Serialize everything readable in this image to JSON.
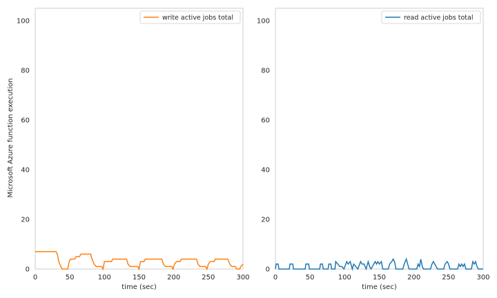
{
  "ylabel_shared": "Microsoft Azure function execution",
  "chart_data": [
    {
      "type": "line",
      "xlabel": "time (sec)",
      "ylabel": "Microsoft Azure function execution",
      "xlim": [
        0,
        300
      ],
      "ylim": [
        0,
        105
      ],
      "xticks": [
        0,
        50,
        100,
        150,
        200,
        250,
        300
      ],
      "yticks": [
        0,
        20,
        40,
        60,
        80,
        100
      ],
      "grid": false,
      "legend_position": "top-right",
      "series": [
        {
          "name": "write active jobs total",
          "color": "#ff7f0e",
          "points": [
            [
              0,
              7
            ],
            [
              5,
              7
            ],
            [
              10,
              7
            ],
            [
              15,
              7
            ],
            [
              20,
              7
            ],
            [
              25,
              7
            ],
            [
              30,
              7
            ],
            [
              32,
              6
            ],
            [
              34,
              3
            ],
            [
              37,
              1
            ],
            [
              39,
              0
            ],
            [
              47,
              0
            ],
            [
              49,
              3
            ],
            [
              51,
              4
            ],
            [
              57,
              4
            ],
            [
              59,
              5
            ],
            [
              64,
              5
            ],
            [
              66,
              6
            ],
            [
              80,
              6
            ],
            [
              82,
              4
            ],
            [
              85,
              2
            ],
            [
              88,
              1
            ],
            [
              96,
              1
            ],
            [
              98,
              0
            ],
            [
              100,
              3
            ],
            [
              103,
              3
            ],
            [
              110,
              3
            ],
            [
              112,
              4
            ],
            [
              132,
              4
            ],
            [
              134,
              2
            ],
            [
              137,
              1
            ],
            [
              148,
              1
            ],
            [
              150,
              0
            ],
            [
              152,
              3
            ],
            [
              157,
              3
            ],
            [
              159,
              4
            ],
            [
              183,
              4
            ],
            [
              185,
              2
            ],
            [
              188,
              1
            ],
            [
              197,
              1
            ],
            [
              199,
              0
            ],
            [
              201,
              2
            ],
            [
              204,
              3
            ],
            [
              209,
              3
            ],
            [
              211,
              4
            ],
            [
              233,
              4
            ],
            [
              235,
              2
            ],
            [
              238,
              1
            ],
            [
              246,
              1
            ],
            [
              248,
              0
            ],
            [
              250,
              2
            ],
            [
              253,
              3
            ],
            [
              258,
              3
            ],
            [
              260,
              4
            ],
            [
              278,
              4
            ],
            [
              281,
              2
            ],
            [
              284,
              1
            ],
            [
              289,
              1
            ],
            [
              291,
              0
            ],
            [
              295,
              0
            ],
            [
              297,
              1
            ],
            [
              300,
              2
            ]
          ]
        }
      ]
    },
    {
      "type": "line",
      "xlabel": "time (sec)",
      "ylabel": "",
      "xlim": [
        0,
        300
      ],
      "ylim": [
        0,
        105
      ],
      "xticks": [
        0,
        50,
        100,
        150,
        200,
        250,
        300
      ],
      "yticks": [
        0,
        20,
        40,
        60,
        80,
        100
      ],
      "grid": false,
      "legend_position": "top-right",
      "series": [
        {
          "name": "read active jobs total",
          "color": "#1f77b4",
          "points": [
            [
              0,
              0
            ],
            [
              1,
              2
            ],
            [
              4,
              2
            ],
            [
              5,
              0
            ],
            [
              20,
              0
            ],
            [
              21,
              2
            ],
            [
              25,
              2
            ],
            [
              26,
              0
            ],
            [
              43,
              0
            ],
            [
              44,
              2
            ],
            [
              48,
              2
            ],
            [
              49,
              0
            ],
            [
              64,
              0
            ],
            [
              65,
              2
            ],
            [
              68,
              2
            ],
            [
              69,
              0
            ],
            [
              76,
              0
            ],
            [
              77,
              2
            ],
            [
              80,
              2
            ],
            [
              81,
              0
            ],
            [
              86,
              0
            ],
            [
              87,
              3
            ],
            [
              90,
              2
            ],
            [
              93,
              1
            ],
            [
              96,
              1
            ],
            [
              99,
              0
            ],
            [
              103,
              3
            ],
            [
              105,
              2
            ],
            [
              108,
              3
            ],
            [
              111,
              0
            ],
            [
              113,
              2
            ],
            [
              116,
              1
            ],
            [
              119,
              0
            ],
            [
              123,
              3
            ],
            [
              125,
              2
            ],
            [
              128,
              2
            ],
            [
              131,
              0
            ],
            [
              134,
              3
            ],
            [
              136,
              1
            ],
            [
              138,
              0
            ],
            [
              142,
              2
            ],
            [
              144,
              3
            ],
            [
              146,
              2
            ],
            [
              148,
              3
            ],
            [
              150,
              2
            ],
            [
              153,
              3
            ],
            [
              155,
              0
            ],
            [
              163,
              0
            ],
            [
              165,
              2
            ],
            [
              168,
              3
            ],
            [
              170,
              4
            ],
            [
              172,
              3
            ],
            [
              174,
              0
            ],
            [
              184,
              0
            ],
            [
              186,
              2
            ],
            [
              189,
              4
            ],
            [
              191,
              2
            ],
            [
              193,
              0
            ],
            [
              204,
              0
            ],
            [
              206,
              2
            ],
            [
              208,
              1
            ],
            [
              210,
              4
            ],
            [
              212,
              1
            ],
            [
              214,
              0
            ],
            [
              224,
              0
            ],
            [
              226,
              2
            ],
            [
              228,
              3
            ],
            [
              230,
              2
            ],
            [
              232,
              1
            ],
            [
              234,
              0
            ],
            [
              243,
              0
            ],
            [
              245,
              2
            ],
            [
              248,
              3
            ],
            [
              250,
              2
            ],
            [
              252,
              0
            ],
            [
              263,
              0
            ],
            [
              265,
              2
            ],
            [
              267,
              1
            ],
            [
              269,
              2
            ],
            [
              271,
              1
            ],
            [
              273,
              2
            ],
            [
              275,
              0
            ],
            [
              283,
              0
            ],
            [
              285,
              3
            ],
            [
              287,
              2
            ],
            [
              289,
              3
            ],
            [
              291,
              1
            ],
            [
              293,
              0
            ],
            [
              300,
              0
            ]
          ]
        }
      ]
    }
  ]
}
